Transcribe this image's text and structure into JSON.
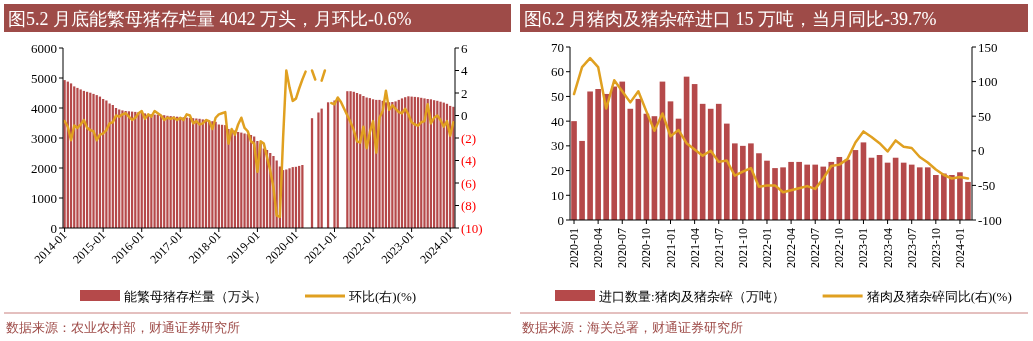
{
  "chart_data": [
    {
      "type": "bar",
      "title": "图5.2 月底能繁母猪存栏量 4042 万头，月环比-0.6%",
      "categories": [
        "2014-01",
        null,
        null,
        null,
        null,
        null,
        null,
        null,
        null,
        null,
        null,
        null,
        "2015-01",
        null,
        null,
        null,
        null,
        null,
        null,
        null,
        null,
        null,
        null,
        null,
        "2016-01",
        null,
        null,
        null,
        null,
        null,
        null,
        null,
        null,
        null,
        null,
        null,
        "2017-01",
        null,
        null,
        null,
        null,
        null,
        null,
        null,
        null,
        null,
        null,
        null,
        "2018-01",
        null,
        null,
        null,
        null,
        null,
        null,
        null,
        null,
        null,
        null,
        null,
        "2019-01",
        null,
        null,
        null,
        null,
        null,
        null,
        null,
        null,
        null,
        null,
        null,
        "2020-01",
        null,
        null,
        null,
        null,
        null,
        null,
        null,
        null,
        null,
        null,
        null,
        "2021-01",
        null,
        null,
        null,
        null,
        null,
        null,
        null,
        null,
        null,
        null,
        null,
        "2022-01",
        null,
        null,
        null,
        null,
        null,
        null,
        null,
        null,
        null,
        null,
        null,
        "2023-01",
        null,
        null,
        null,
        null,
        null,
        null,
        null,
        null,
        null,
        null,
        null,
        "2024-01",
        null
      ],
      "series": [
        {
          "name": "能繁母猪存栏量（万头）",
          "color": "#b5494a",
          "values": [
            4930,
            4880,
            4820,
            4720,
            4670,
            4620,
            4570,
            4540,
            4510,
            4470,
            4430,
            4380,
            4300,
            4250,
            4150,
            4100,
            4000,
            3950,
            3920,
            3900,
            3890,
            3880,
            3870,
            3860,
            3840,
            3820,
            3800,
            3790,
            3780,
            3780,
            3770,
            3760,
            3740,
            3730,
            3720,
            3710,
            3700,
            3690,
            3680,
            3670,
            3660,
            3650,
            3640,
            3620,
            3600,
            3580,
            3560,
            3540,
            3450,
            3440,
            3430,
            3300,
            3280,
            3250,
            3200,
            3180,
            3150,
            3130,
            3100,
            3050,
            2900,
            2800,
            2650,
            2600,
            2500,
            2400,
            2250,
            2050,
            1930,
            1950,
            1990,
            2030,
            2040,
            2070,
            2100,
            null,
            null,
            3660,
            null,
            3850,
            3980,
            null,
            4190,
            null,
            4250,
            4300,
            null,
            null,
            4560,
            4560,
            4540,
            4500,
            4460,
            4400,
            4350,
            4330,
            4290,
            4270,
            4270,
            4240,
            4190,
            4190,
            4200,
            4220,
            4270,
            4320,
            4360,
            4390,
            4380,
            4370,
            4360,
            4340,
            4320,
            4300,
            4290,
            4260,
            4240,
            4210,
            4180,
            4140,
            4070,
            4040
          ]
        },
        {
          "name": "环比(右)(%)",
          "type": "line",
          "axis": "y2",
          "color": "#e0a020",
          "values": [
            -0.5,
            -1.0,
            -2.2,
            -0.9,
            -1.1,
            -0.8,
            -0.4,
            -1.1,
            -1.3,
            -1.4,
            -2.2,
            -1.7,
            -1.6,
            -1.3,
            -0.7,
            -0.6,
            0,
            -0.1,
            0.1,
            0.2,
            -0.1,
            -0.4,
            -0.2,
            0.2,
            0.4,
            -0.3,
            0.1,
            -0.1,
            0.4,
            0.2,
            0,
            -0.4,
            -0.2,
            -0.3,
            -0.2,
            -0.4,
            -0.2,
            -0.4,
            0.1,
            0,
            -0.7,
            -0.5,
            -0.8,
            -0.7,
            -0.4,
            -0.5,
            -1.2,
            -0.2,
            0.1,
            0.2,
            0.3,
            -2.5,
            -1.2,
            -1.7,
            -0.8,
            -0.2,
            -1.1,
            -1.4,
            -2.3,
            -2.5,
            -5.0,
            -2.3,
            -2.5,
            -3.7,
            -4.9,
            -6.4,
            -8.9,
            -9.0,
            -2.0,
            4.0,
            2.5,
            1.3,
            1.5,
            2.4,
            3.2,
            3.9,
            null,
            4.0,
            3.2,
            null,
            3.1,
            4.0,
            null,
            1.1,
            1.0,
            1.6,
            1.2,
            0.6,
            0.0,
            -0.6,
            -1.3,
            -2.3,
            -2.4,
            -1.0,
            -2.9,
            -1.5,
            -0.5,
            -3.3,
            -0.2,
            0.4,
            2.2,
            0.5,
            0.9,
            0.6,
            0.3,
            0.2,
            0.6,
            0.1,
            -0.6,
            -0.8,
            -0.9,
            -0.6,
            -0.5,
            1.0,
            -0.7,
            -0.2,
            0.0,
            -0.4,
            -1.0,
            -0.5,
            -1.8,
            -0.6
          ]
        }
      ],
      "ylim": [
        0,
        6000
      ],
      "yticks": [
        0,
        1000,
        2000,
        3000,
        4000,
        5000,
        6000
      ],
      "y2lim": [
        -10,
        6
      ],
      "y2ticks": [
        {
          "value": -10,
          "label": "(10)"
        },
        {
          "value": -8,
          "label": "(8)"
        },
        {
          "value": -6,
          "label": "(6)"
        },
        {
          "value": -4,
          "label": "(4)"
        },
        {
          "value": -2,
          "label": "(2)"
        },
        0,
        2,
        4,
        6
      ],
      "legend": "bottom",
      "annotations": [
        "数据来源：农业农村部，财通证券研究所"
      ]
    },
    {
      "type": "bar",
      "title": "图6.2 月猪肉及猪杂碎进口 15 万吨，当月同比-39.7%",
      "categories": [
        "2020-01",
        null,
        null,
        "2020-04",
        null,
        null,
        "2020-07",
        null,
        null,
        "2020-10",
        null,
        null,
        "2021-01",
        null,
        null,
        "2021-04",
        null,
        null,
        "2021-07",
        null,
        null,
        "2021-10",
        null,
        null,
        "2022-01",
        null,
        null,
        "2022-04",
        null,
        null,
        "2022-07",
        null,
        null,
        "2022-10",
        null,
        null,
        "2023-01",
        null,
        null,
        "2023-04",
        null,
        null,
        "2023-07",
        null,
        null,
        "2023-10",
        null,
        null,
        "2024-01",
        null
      ],
      "series": [
        {
          "name": "进口数量:猪肉及猪杂碎（万吨）",
          "color": "#b5494a",
          "values": [
            40,
            32,
            52,
            53,
            51,
            54,
            56,
            45,
            49,
            43,
            42,
            56,
            48,
            41,
            58,
            55,
            47,
            45,
            47,
            39,
            31,
            30,
            31,
            27,
            24,
            21,
            21.3,
            23.5,
            23.5,
            22.4,
            22.4,
            21.6,
            23.5,
            25.5,
            24.4,
            28.3,
            31.4,
            25.2,
            26.3,
            23.2,
            25.2,
            23.2,
            22.4,
            21.3,
            21.3,
            18.2,
            18.8,
            18.2,
            19.3,
            15.4
          ]
        },
        {
          "name": "猪肉及猪杂碎同比(右)(%)",
          "type": "line",
          "axis": "y2",
          "color": "#e0a020",
          "values": [
            82,
            121,
            134,
            121,
            61,
            102,
            86,
            70,
            86,
            57,
            29,
            54,
            21,
            30,
            11,
            2,
            -7,
            0,
            -16,
            -14,
            -36,
            -30,
            -25,
            -52,
            -50,
            -50,
            -60,
            -57,
            -54,
            -51,
            -55,
            -40,
            -22,
            -20,
            -12,
            12,
            28,
            20,
            11,
            -1,
            15,
            6,
            4,
            -9,
            -17,
            -27,
            -35,
            -40,
            -38,
            -40
          ]
        }
      ],
      "ylim": [
        0,
        70
      ],
      "yticks": [
        0,
        10,
        20,
        30,
        40,
        50,
        60,
        70
      ],
      "y2lim": [
        -100,
        150
      ],
      "y2ticks": [
        -100,
        -50,
        0,
        50,
        100,
        150
      ],
      "legend": "bottom",
      "annotations": [
        "数据来源：海关总署，财通证券研究所"
      ]
    }
  ]
}
